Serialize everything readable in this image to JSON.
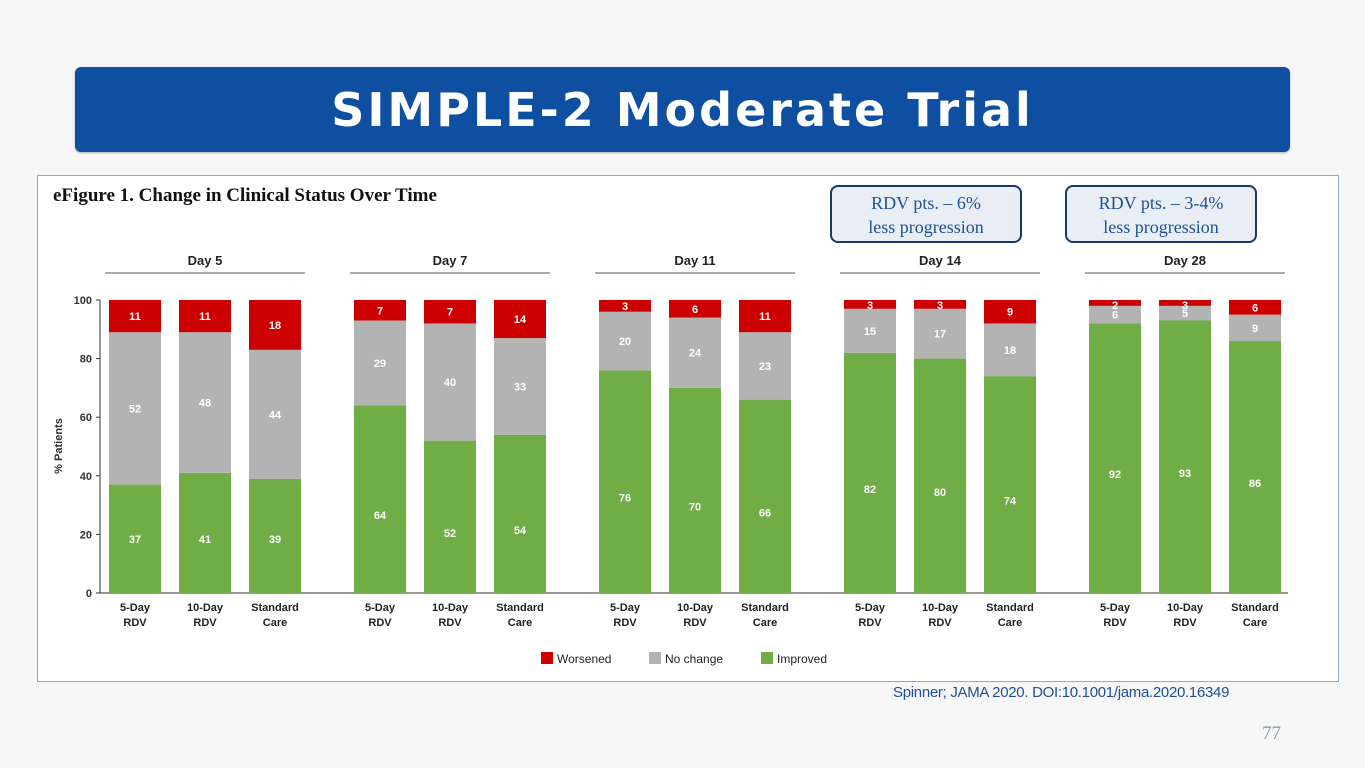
{
  "slide": {
    "title": "SIMPLE-2 Moderate Trial",
    "citation": "Spinner; JAMA 2020. DOI:10.1001/jama.2020.16349",
    "page_number": "77"
  },
  "callouts": [
    {
      "line1": "RDV pts. – 6%",
      "line2": "less progression"
    },
    {
      "line1": "RDV pts. – 3-4%",
      "line2": "less progression"
    }
  ],
  "colors": {
    "worsened": "#cc0000",
    "no_change": "#b3b3b3",
    "improved": "#70ad47"
  },
  "chart_data": {
    "type": "bar",
    "stacked": true,
    "title": "eFigure 1. Change in Clinical Status Over Time",
    "ylabel": "% Patients",
    "ylim": [
      0,
      100
    ],
    "yticks": [
      0,
      20,
      40,
      60,
      80,
      100
    ],
    "legend": [
      "Worsened",
      "No change",
      "Improved"
    ],
    "legend_position": "bottom-center",
    "groups": [
      {
        "label": "Day 5",
        "bars": [
          {
            "label": [
              "5-Day",
              "RDV"
            ],
            "improved": 37,
            "no_change": 52,
            "worsened": 11
          },
          {
            "label": [
              "10-Day",
              "RDV"
            ],
            "improved": 41,
            "no_change": 48,
            "worsened": 11
          },
          {
            "label": [
              "Standard",
              "Care"
            ],
            "improved": 39,
            "no_change": 44,
            "worsened": 18
          }
        ]
      },
      {
        "label": "Day 7",
        "bars": [
          {
            "label": [
              "5-Day",
              "RDV"
            ],
            "improved": 64,
            "no_change": 29,
            "worsened": 7
          },
          {
            "label": [
              "10-Day",
              "RDV"
            ],
            "improved": 52,
            "no_change": 40,
            "worsened": 7
          },
          {
            "label": [
              "Standard",
              "Care"
            ],
            "improved": 54,
            "no_change": 33,
            "worsened": 14
          }
        ]
      },
      {
        "label": "Day 11",
        "bars": [
          {
            "label": [
              "5-Day",
              "RDV"
            ],
            "improved": 76,
            "no_change": 20,
            "worsened": 3
          },
          {
            "label": [
              "10-Day",
              "RDV"
            ],
            "improved": 70,
            "no_change": 24,
            "worsened": 6
          },
          {
            "label": [
              "Standard",
              "Care"
            ],
            "improved": 66,
            "no_change": 23,
            "worsened": 11
          }
        ]
      },
      {
        "label": "Day 14",
        "bars": [
          {
            "label": [
              "5-Day",
              "RDV"
            ],
            "improved": 82,
            "no_change": 15,
            "worsened": 3
          },
          {
            "label": [
              "10-Day",
              "RDV"
            ],
            "improved": 80,
            "no_change": 17,
            "worsened": 3
          },
          {
            "label": [
              "Standard",
              "Care"
            ],
            "improved": 74,
            "no_change": 18,
            "worsened": 9
          }
        ]
      },
      {
        "label": "Day 28",
        "bars": [
          {
            "label": [
              "5-Day",
              "RDV"
            ],
            "improved": 92,
            "no_change": 6,
            "worsened": 2
          },
          {
            "label": [
              "10-Day",
              "RDV"
            ],
            "improved": 93,
            "no_change": 5,
            "worsened": 3
          },
          {
            "label": [
              "Standard",
              "Care"
            ],
            "improved": 86,
            "no_change": 9,
            "worsened": 6
          }
        ]
      }
    ]
  }
}
